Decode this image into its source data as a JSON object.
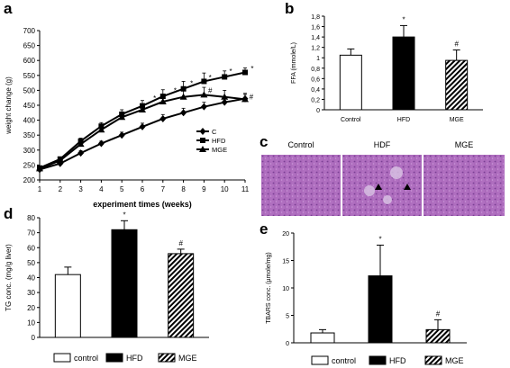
{
  "panels": {
    "a": "a",
    "b": "b",
    "c": "c",
    "d": "d",
    "e": "e"
  },
  "histology": {
    "labels": [
      "Control",
      "HDF",
      "MGE"
    ]
  },
  "chart_data": [
    {
      "id": "a",
      "type": "line",
      "xlabel": "experiment times (weeks)",
      "ylabel": "weight change (g)",
      "x": [
        1,
        2,
        3,
        4,
        5,
        6,
        7,
        8,
        9,
        10,
        11
      ],
      "xlim": [
        1,
        11
      ],
      "ylim": [
        200,
        700
      ],
      "yticks": [
        200,
        250,
        300,
        350,
        400,
        450,
        500,
        550,
        600,
        650,
        700
      ],
      "legend_position": "right",
      "series": [
        {
          "name": "C",
          "marker": "diamond",
          "values": [
            235,
            255,
            290,
            322,
            350,
            378,
            405,
            425,
            445,
            460,
            472
          ],
          "errors": [
            5,
            6,
            8,
            8,
            10,
            12,
            14,
            15,
            15,
            14,
            14
          ]
        },
        {
          "name": "HFD",
          "marker": "square",
          "values": [
            240,
            270,
            330,
            380,
            420,
            448,
            480,
            505,
            530,
            545,
            560
          ],
          "errors": [
            5,
            7,
            10,
            12,
            15,
            18,
            22,
            25,
            28,
            20,
            15
          ]
        },
        {
          "name": "MGE",
          "marker": "triangle",
          "values": [
            238,
            265,
            320,
            368,
            410,
            435,
            462,
            478,
            485,
            478,
            470
          ],
          "errors": [
            5,
            7,
            9,
            12,
            15,
            18,
            20,
            22,
            25,
            22,
            20
          ]
        }
      ],
      "annotations": [
        "*",
        "*",
        "*",
        "*",
        "*",
        "*",
        "#",
        "#"
      ]
    },
    {
      "id": "b",
      "type": "bar",
      "ylabel": "FFA (mmole/L)",
      "categories": [
        "Control",
        "HFD",
        "MGE"
      ],
      "values": [
        1.05,
        1.4,
        0.95
      ],
      "errors": [
        0.12,
        0.22,
        0.2
      ],
      "ylim": [
        0,
        1.8
      ],
      "yticks": [
        "0",
        "0,2",
        "0,4",
        "0,6",
        "0,8",
        "1",
        "1,2",
        "1,4",
        "1,6",
        "1,8"
      ],
      "fills": [
        "white",
        "black",
        "hatched"
      ],
      "annotations": [
        "",
        "*",
        "#"
      ]
    },
    {
      "id": "d",
      "type": "bar",
      "ylabel": "TG conc. (mg/g liver)",
      "categories": [
        "control",
        "HFD",
        "MGE"
      ],
      "values": [
        42,
        72,
        56
      ],
      "errors": [
        5,
        6,
        3
      ],
      "ylim": [
        0,
        80
      ],
      "yticks": [
        "0",
        "10",
        "20",
        "30",
        "40",
        "50",
        "60",
        "70",
        "80"
      ],
      "fills": [
        "white",
        "black",
        "hatched"
      ],
      "annotations": [
        "",
        "*",
        "#"
      ],
      "legend_position": "bottom"
    },
    {
      "id": "e",
      "type": "bar",
      "ylabel": "TBARS conc. (µmole/mg)",
      "categories": [
        "control",
        "HFD",
        "MGE"
      ],
      "values": [
        1.8,
        12.2,
        2.4
      ],
      "errors": [
        0.6,
        5.6,
        1.8
      ],
      "ylim": [
        0,
        20
      ],
      "yticks": [
        "0",
        "5",
        "10",
        "15",
        "20"
      ],
      "fills": [
        "white",
        "black",
        "hatched"
      ],
      "annotations": [
        "",
        "*",
        "#"
      ],
      "legend_position": "bottom"
    }
  ]
}
